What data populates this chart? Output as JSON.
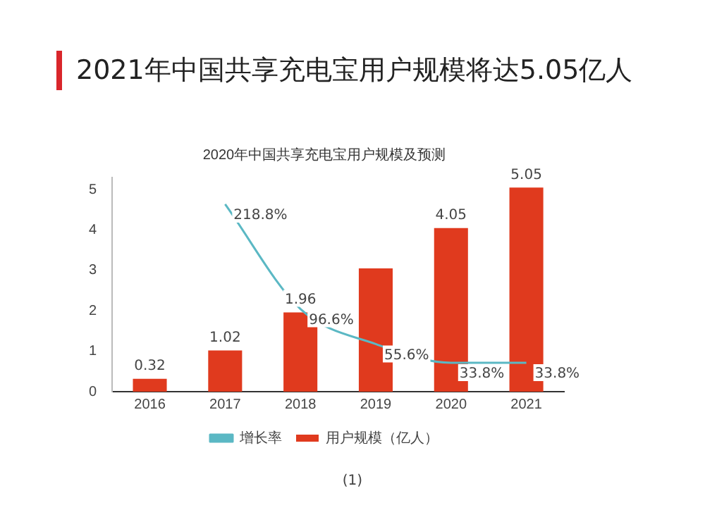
{
  "chart_data": {
    "type": "bar",
    "title": "2021年中国共享充电宝用户规模将达5.05亿人",
    "subtitle": "2020年中国共享充电宝用户规模及预测",
    "categories": [
      "2016",
      "2017",
      "2018",
      "2019",
      "2020",
      "2021"
    ],
    "series": [
      {
        "name": "用户规模（亿人）",
        "color": "#e03a1e",
        "values": [
          0.32,
          1.02,
          1.96,
          3.05,
          4.05,
          5.05
        ],
        "value_labels": [
          "0.32",
          "1.02",
          "1.96",
          null,
          "4.05",
          "5.05"
        ]
      },
      {
        "name": "增长率",
        "type": "line",
        "axis": "y2",
        "color": "#5bb8c4",
        "values": [
          null,
          218.8,
          96.6,
          55.6,
          33.8,
          33.8
        ],
        "value_labels": [
          null,
          "218.8%",
          "96.6%",
          "55.6%",
          "33.8%",
          "33.8%"
        ]
      }
    ],
    "ylim": [
      0,
      5.3
    ],
    "yticks": [
      0,
      1,
      2,
      3,
      4,
      5
    ],
    "grid": false,
    "legend": "bottom",
    "marker": "none",
    "line_style": "solid",
    "annotations": [
      "(1)"
    ]
  }
}
